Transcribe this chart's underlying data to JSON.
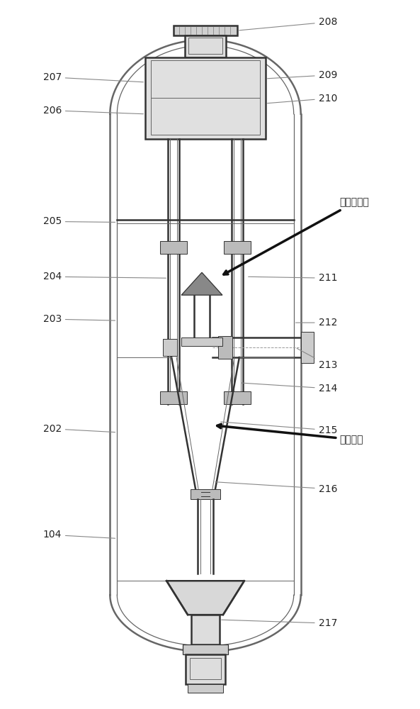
{
  "bg_color": "#ffffff",
  "line_color": "#666666",
  "dark_line": "#333333",
  "label_color": "#222222",
  "fig_width": 5.93,
  "fig_height": 10.0
}
